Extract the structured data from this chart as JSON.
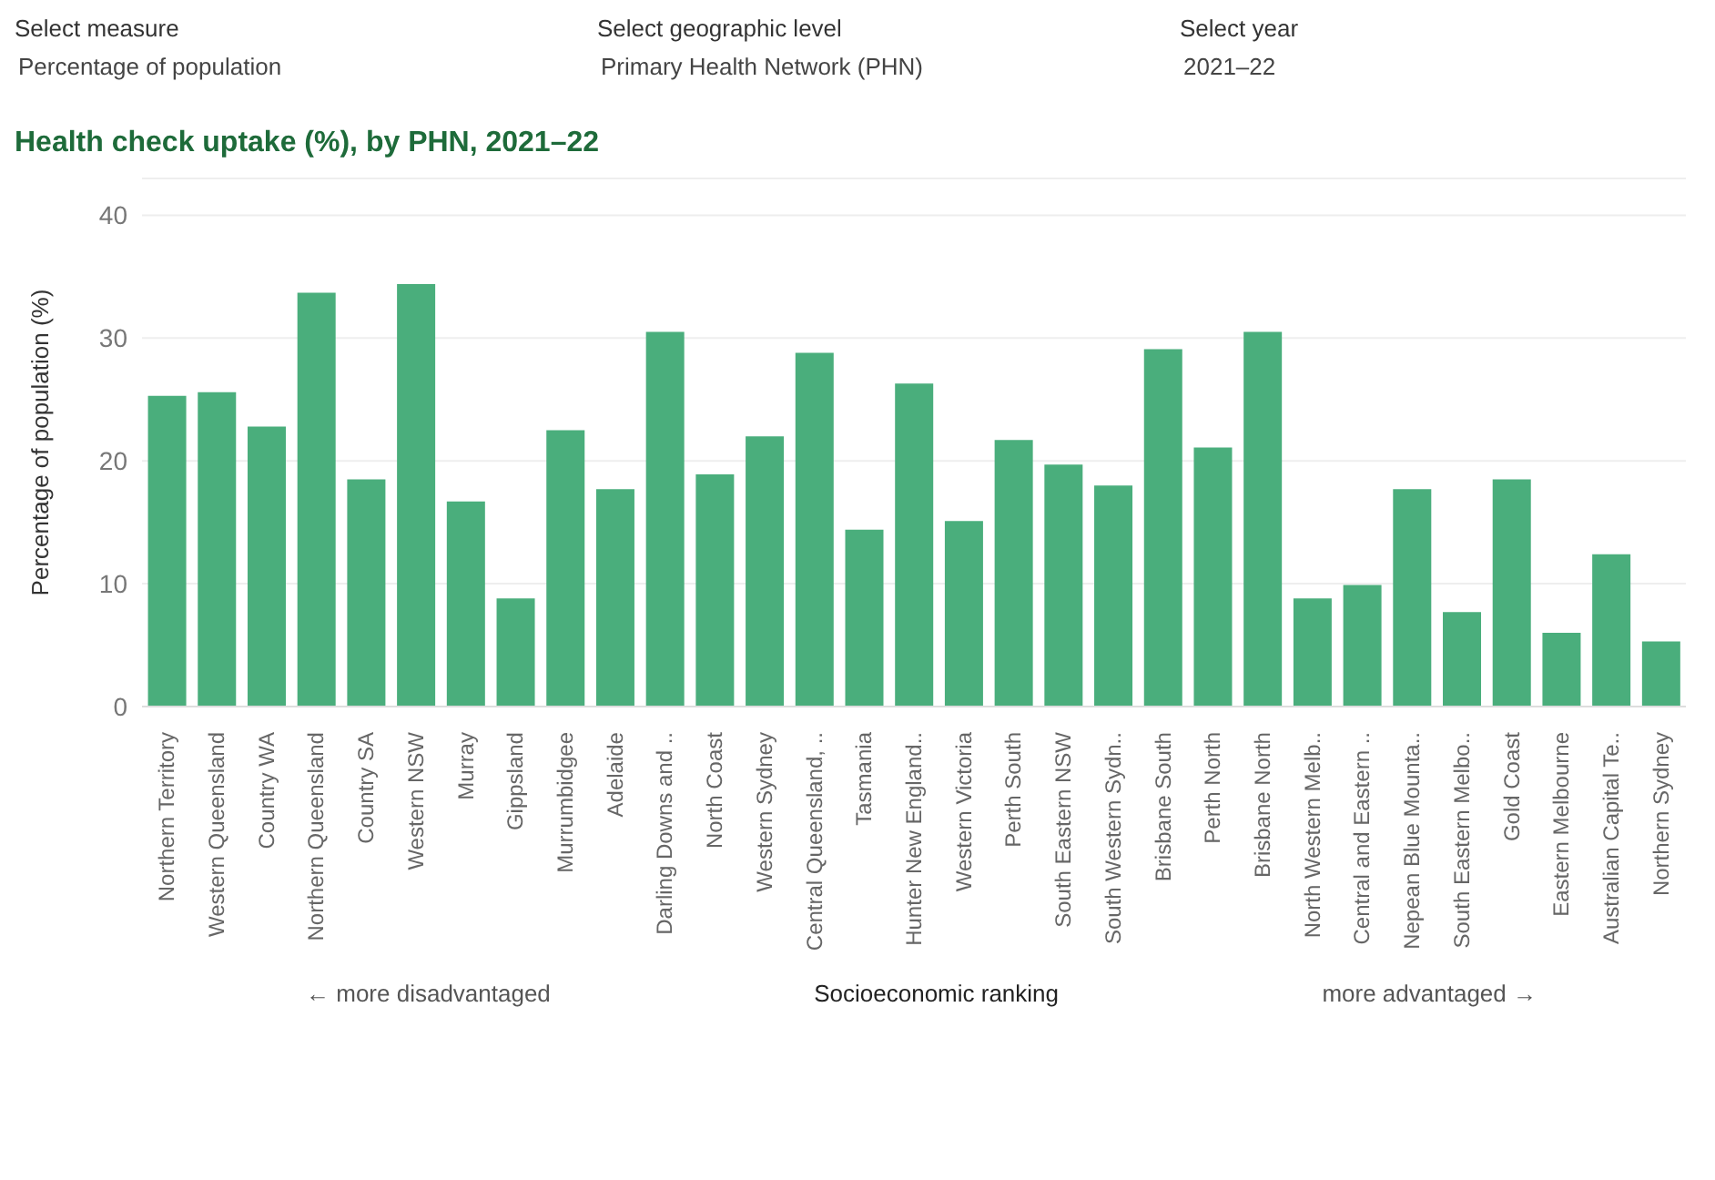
{
  "chart_data": {
    "type": "bar",
    "title": "Health check uptake (%), by PHN, 2021–22",
    "xlabel": "Socioeconomic ranking",
    "ylabel": "Percentage of population (%)",
    "annotations": [
      "Select measure",
      "Percentage of population",
      "Select geographic level",
      "Primary Health Network (PHN)",
      "Select year",
      "2021–22",
      "← more disadvantaged",
      "more advantaged →"
    ],
    "categories": [
      "Northern Territory",
      "Western Queensland",
      "Country WA",
      "Northern Queensland",
      "Country SA",
      "Western NSW",
      "Murray",
      "Gippsland",
      "Murrumbidgee",
      "Adelaide",
      "Darling Downs and ..",
      "North Coast",
      "Western Sydney",
      "Central Queensland, ..",
      "Tasmania",
      "Hunter New England..",
      "Western Victoria",
      "Perth South",
      "South Eastern NSW",
      "South Western Sydn..",
      "Brisbane South",
      "Perth North",
      "Brisbane North",
      "North Western Melb..",
      "Central and Eastern ..",
      "Nepean Blue Mounta..",
      "South Eastern Melbo..",
      "Gold Coast",
      "Eastern Melbourne",
      "Australian Capital Te..",
      "Northern Sydney"
    ],
    "values": [
      25.3,
      25.6,
      22.8,
      33.7,
      18.5,
      34.4,
      16.7,
      8.8,
      22.5,
      17.7,
      30.5,
      18.9,
      22,
      28.8,
      14.4,
      26.3,
      15.1,
      21.7,
      19.7,
      18,
      29.1,
      21.1,
      30.5,
      8.8,
      9.9,
      17.7,
      7.7,
      18.5,
      6,
      12.4,
      5.3
    ],
    "color": "#4aae7c",
    "ylim": [
      0,
      43
    ],
    "yticks": [
      0,
      10,
      20,
      30,
      40
    ],
    "grid": "y"
  }
}
